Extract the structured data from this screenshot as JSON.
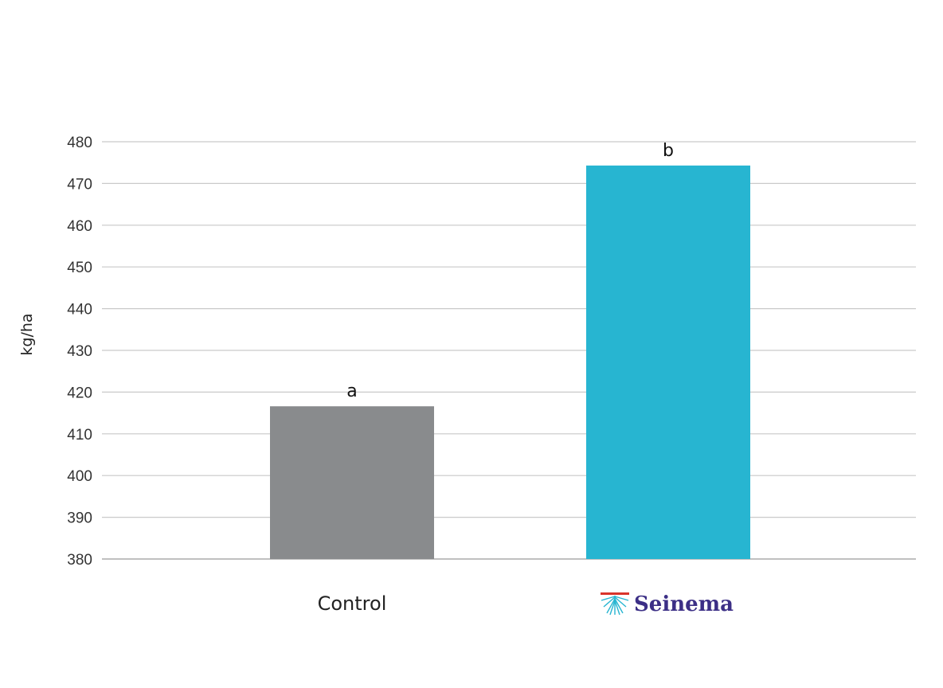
{
  "chart_data": {
    "type": "bar",
    "categories": [
      "Control",
      "Seinema"
    ],
    "values": [
      416.6,
      474.3
    ],
    "significance_labels": [
      "a",
      "b"
    ],
    "ylabel": "kg/ha",
    "ylim": [
      380,
      480
    ],
    "yticks": [
      380,
      390,
      400,
      410,
      420,
      430,
      440,
      450,
      460,
      470,
      480
    ],
    "grid": true,
    "colors": [
      "#898b8d",
      "#27b5d1"
    ],
    "brand_color": "#3c2f86",
    "logo_accent_color": "#d9342b"
  }
}
